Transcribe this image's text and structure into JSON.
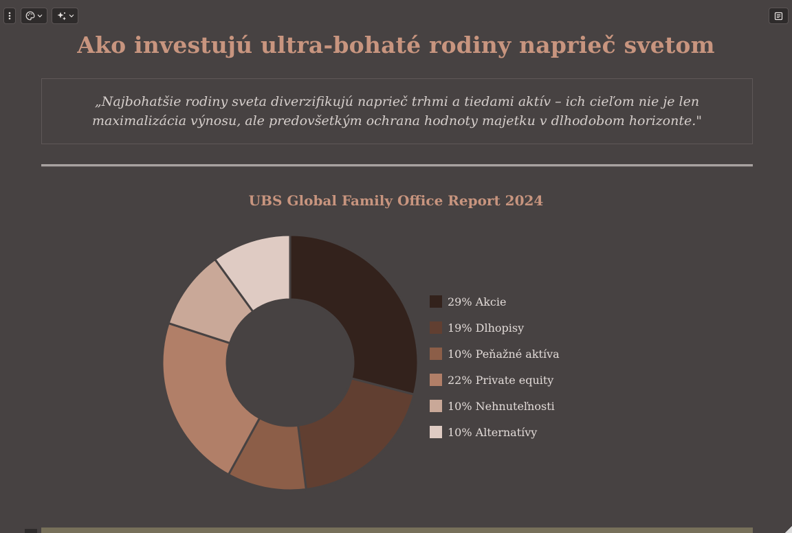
{
  "toolbar": {
    "menu_icon": "vertical-dots-icon",
    "palette_icon": "palette-icon",
    "magic_icon": "sparkles-icon",
    "notes_icon": "notes-icon"
  },
  "page": {
    "title": "Ako investujú ultra-bohaté rodiny naprieč svetom",
    "quote": "„Najbohatšie rodiny sveta diverzifikujú naprieč trhmi a tiedami aktív – ich cieľom nie je len maximalizácia výnosu, ale predovšetkým ochrana hodnoty majetku v dlhodobom horizonte.\""
  },
  "colors": {
    "background": "#474242",
    "accent": "#c8957f"
  },
  "chart_data": {
    "type": "pie",
    "title": "UBS Global Family Office Report 2024",
    "donut": true,
    "legend_position": "right",
    "slices": [
      {
        "label": "29% Akcie",
        "value": 29,
        "color": "#33221c"
      },
      {
        "label": "19% Dlhopisy",
        "value": 19,
        "color": "#613f31"
      },
      {
        "label": "10% Peňažné aktíva",
        "value": 10,
        "color": "#8c5e48"
      },
      {
        "label": "22% Private equity",
        "value": 22,
        "color": "#b17f68"
      },
      {
        "label": "10% Nehnuteľnosti",
        "value": 10,
        "color": "#c9a898"
      },
      {
        "label": "10% Alternatívy",
        "value": 10,
        "color": "#dfcbc3"
      }
    ]
  }
}
